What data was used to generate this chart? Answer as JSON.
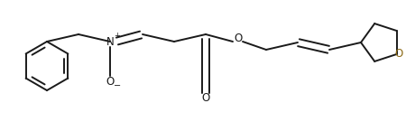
{
  "bg_color": "#ffffff",
  "line_color": "#1a1a1a",
  "line_width": 1.4,
  "label_color_black": "#1a1a1a",
  "label_color_O": "#8B6914",
  "figsize": [
    4.5,
    1.35
  ],
  "dpi": 100,
  "xlim": [
    0,
    450
  ],
  "ylim": [
    0,
    135
  ]
}
